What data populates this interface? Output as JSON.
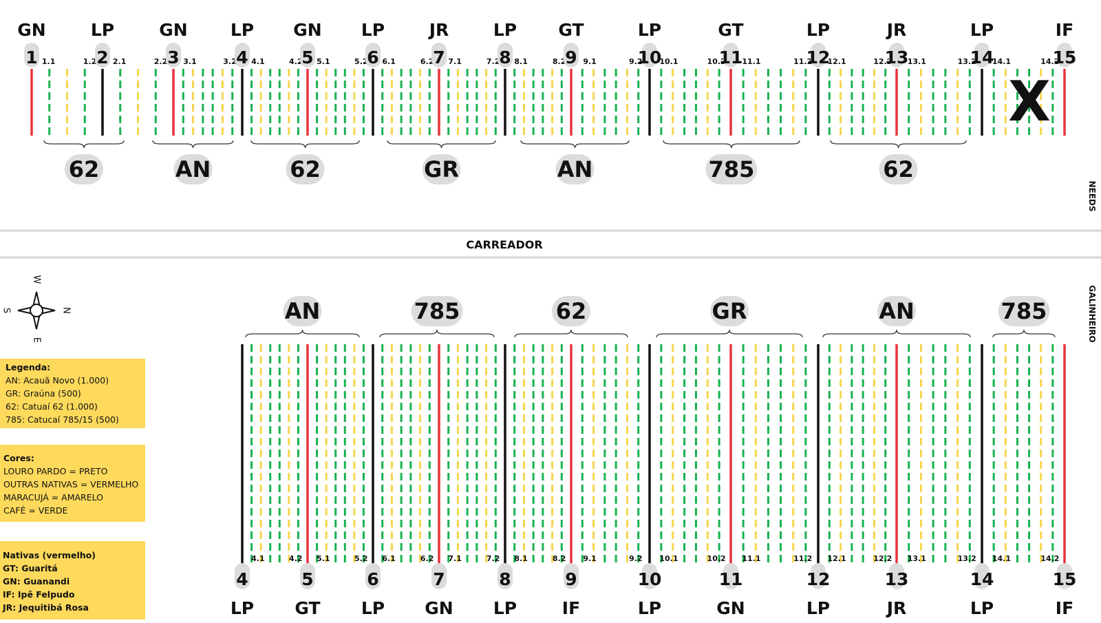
{
  "separator": {
    "road_label": "CARREADOR"
  },
  "side_labels": {
    "top": "NEEDS",
    "bottom": "GALINHEIRO"
  },
  "compass": {
    "n": "N",
    "s": "S",
    "e": "E",
    "w": "W"
  },
  "colors": {
    "black": "#111111",
    "red": "#e8343c",
    "green": "#17b24f",
    "yellow": "#f6d64e",
    "bubble": "#dcdcdc"
  },
  "top": {
    "markers": [
      {
        "num": "1",
        "label": "GN",
        "color": "red"
      },
      {
        "num": "2",
        "label": "LP",
        "color": "black"
      },
      {
        "num": "3",
        "label": "GN",
        "color": "red"
      },
      {
        "num": "4",
        "label": "LP",
        "color": "black"
      },
      {
        "num": "5",
        "label": "GN",
        "color": "red"
      },
      {
        "num": "6",
        "label": "LP",
        "color": "black"
      },
      {
        "num": "7",
        "label": "JR",
        "color": "red"
      },
      {
        "num": "8",
        "label": "LP",
        "color": "black"
      },
      {
        "num": "9",
        "label": "GT",
        "color": "red"
      },
      {
        "num": "10",
        "label": "LP",
        "color": "black"
      },
      {
        "num": "11",
        "label": "GT",
        "color": "red"
      },
      {
        "num": "12",
        "label": "LP",
        "color": "black"
      },
      {
        "num": "13",
        "label": "JR",
        "color": "red"
      },
      {
        "num": "14",
        "label": "LP",
        "color": "black"
      },
      {
        "num": "15",
        "label": "IF",
        "color": "red"
      }
    ],
    "sub_labels": [
      "1.1",
      "1.2",
      "2.1",
      "2.2",
      "3.1",
      "3.2",
      "4.1",
      "4.2",
      "5.1",
      "5.2",
      "6.1",
      "6.2",
      "7.1",
      "7.2",
      "8.1",
      "8.2",
      "9.1",
      "9.2",
      "10.1",
      "10.2",
      "11.1",
      "11.2",
      "12.1",
      "12.2",
      "13.1",
      "13.2",
      "14.1",
      "14.2"
    ],
    "groups": [
      "62",
      "AN",
      "62",
      "GR",
      "AN",
      "785",
      "62"
    ],
    "excluded_mark": "X"
  },
  "bottom": {
    "markers": [
      {
        "num": "4",
        "label": "LP",
        "color": "black"
      },
      {
        "num": "5",
        "label": "GT",
        "color": "red"
      },
      {
        "num": "6",
        "label": "LP",
        "color": "black"
      },
      {
        "num": "7",
        "label": "GN",
        "color": "red"
      },
      {
        "num": "8",
        "label": "LP",
        "color": "black"
      },
      {
        "num": "9",
        "label": "IF",
        "color": "red"
      },
      {
        "num": "10",
        "label": "LP",
        "color": "black"
      },
      {
        "num": "11",
        "label": "GN",
        "color": "red"
      },
      {
        "num": "12",
        "label": "LP",
        "color": "black"
      },
      {
        "num": "13",
        "label": "JR",
        "color": "red"
      },
      {
        "num": "14",
        "label": "LP",
        "color": "black"
      },
      {
        "num": "15",
        "label": "IF",
        "color": "red"
      }
    ],
    "sub_labels": [
      "4.1",
      "4.2",
      "5.1",
      "5.2",
      "6.1",
      "6.2",
      "7.1",
      "7.2",
      "8.1",
      "8.2",
      "9.1",
      "9.2",
      "10.1",
      "10.2",
      "11.1",
      "11.2",
      "12.1",
      "12.2",
      "13.1",
      "13.2",
      "14.1",
      "14.2"
    ],
    "groups": [
      "AN",
      "785",
      "62",
      "GR",
      "AN",
      "785"
    ]
  },
  "legend": {
    "title": "Legenda:",
    "items": [
      "AN: Acauã Novo (1.000)",
      "GR: Graúna (500)",
      "62: Catuaí 62 (1.000)",
      "785: Catucaí 785/15 (500)"
    ]
  },
  "cores": {
    "title": "Cores:",
    "items": [
      "LOURO PARDO = PRETO",
      "OUTRAS NATIVAS = VERMELHO",
      "MARACUJÁ = AMARELO",
      "CAFÉ = VERDE"
    ]
  },
  "nativas": {
    "title": "Nativas (vermelho)",
    "items": [
      "GT: Guaritá",
      "GN: Guanandi",
      "IF: Ipê Felpudo",
      "JR: Jequitibá Rosa"
    ]
  }
}
